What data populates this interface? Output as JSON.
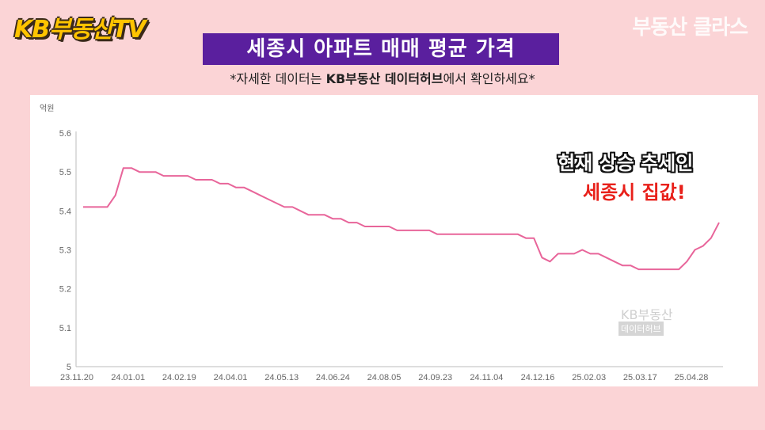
{
  "header": {
    "logo": "KB부동산TV",
    "brand_right": "부동산 클라스",
    "title": "세종시 아파트 매매 평균 가격",
    "subtitle_pre": "*자세한 데이터는 ",
    "subtitle_bold": "KB부동산 데이터허브",
    "subtitle_post": "에서 확인하세요*"
  },
  "callout": {
    "line1": "현재 상승 추세인",
    "line2": "세종시 집값!"
  },
  "watermark": {
    "line1": "KB부동산",
    "line2": "데이터허브"
  },
  "chart_data": {
    "type": "line",
    "ylabel": "억원",
    "ylim": [
      5.0,
      5.6
    ],
    "yticks": [
      5.6,
      5.5,
      5.4,
      5.3,
      5.2,
      5.1,
      5
    ],
    "xticks": [
      "23.11.20",
      "24.01.01",
      "24.02.19",
      "24.04.01",
      "24.05.13",
      "24.06.24",
      "24.08.05",
      "24.09.23",
      "24.11.04",
      "24.12.16",
      "25.02.03",
      "25.03.17",
      "25.04.28"
    ],
    "grid": false,
    "color": "#e8659a",
    "series": [
      {
        "values": [
          5.41,
          5.41,
          5.41,
          5.41,
          5.44,
          5.51,
          5.51,
          5.5,
          5.5,
          5.5,
          5.49,
          5.49,
          5.49,
          5.49,
          5.48,
          5.48,
          5.48,
          5.47,
          5.47,
          5.46,
          5.46,
          5.45,
          5.44,
          5.43,
          5.42,
          5.41,
          5.41,
          5.4,
          5.39,
          5.39,
          5.39,
          5.38,
          5.38,
          5.37,
          5.37,
          5.36,
          5.36,
          5.36,
          5.36,
          5.35,
          5.35,
          5.35,
          5.35,
          5.35,
          5.34,
          5.34,
          5.34,
          5.34,
          5.34,
          5.34,
          5.34,
          5.34,
          5.34,
          5.34,
          5.34,
          5.33,
          5.33,
          5.28,
          5.27,
          5.29,
          5.29,
          5.29,
          5.3,
          5.29,
          5.29,
          5.28,
          5.27,
          5.26,
          5.26,
          5.25,
          5.25,
          5.25,
          5.25,
          5.25,
          5.25,
          5.27,
          5.3,
          5.31,
          5.33,
          5.37
        ]
      }
    ]
  }
}
